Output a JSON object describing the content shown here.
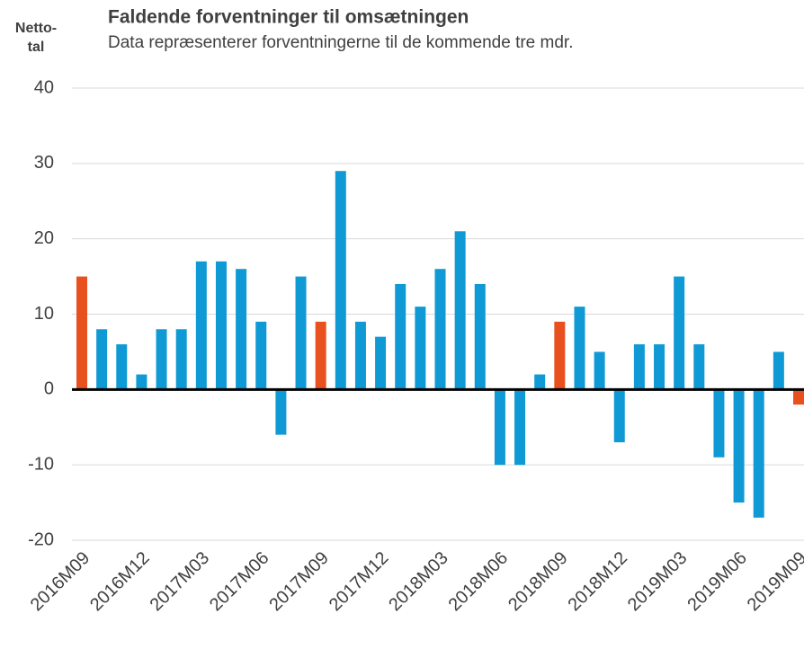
{
  "chart_data": {
    "type": "bar",
    "title": "Faldende forventninger til omsætningen",
    "subtitle": "Data repræsenterer forventningerne til de kommende tre mdr.",
    "ylabel": [
      "Netto-",
      "tal"
    ],
    "categories": [
      "2016M09",
      null,
      null,
      "2016M12",
      null,
      null,
      "2017M03",
      null,
      null,
      "2017M06",
      null,
      null,
      "2017M09",
      null,
      null,
      "2017M12",
      null,
      null,
      "2018M03",
      null,
      null,
      "2018M06",
      null,
      null,
      "2018M09",
      null,
      null,
      "2018M12",
      null,
      null,
      "2019M03",
      null,
      null,
      "2019M06",
      null,
      null,
      "2019M09"
    ],
    "values": [
      15,
      8,
      6,
      2,
      8,
      8,
      17,
      17,
      16,
      9,
      -6,
      15,
      9,
      29,
      9,
      7,
      14,
      11,
      16,
      21,
      14,
      -10,
      -10,
      2,
      9,
      11,
      5,
      -7,
      6,
      6,
      15,
      6,
      -9,
      -15,
      -17,
      5,
      -2
    ],
    "colors": [
      "#e8501e",
      "#0f9ad6",
      "#0f9ad6",
      "#0f9ad6",
      "#0f9ad6",
      "#0f9ad6",
      "#0f9ad6",
      "#0f9ad6",
      "#0f9ad6",
      "#0f9ad6",
      "#0f9ad6",
      "#0f9ad6",
      "#e8501e",
      "#0f9ad6",
      "#0f9ad6",
      "#0f9ad6",
      "#0f9ad6",
      "#0f9ad6",
      "#0f9ad6",
      "#0f9ad6",
      "#0f9ad6",
      "#0f9ad6",
      "#0f9ad6",
      "#0f9ad6",
      "#e8501e",
      "#0f9ad6",
      "#0f9ad6",
      "#0f9ad6",
      "#0f9ad6",
      "#0f9ad6",
      "#0f9ad6",
      "#0f9ad6",
      "#0f9ad6",
      "#0f9ad6",
      "#0f9ad6",
      "#0f9ad6",
      "#e8501e"
    ],
    "ylim": [
      -20,
      40
    ],
    "yticks": [
      -20,
      -10,
      0,
      10,
      20,
      30,
      40
    ],
    "grid": true
  }
}
